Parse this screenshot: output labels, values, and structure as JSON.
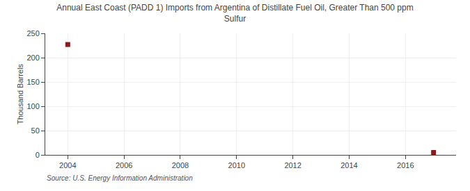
{
  "chart_data": {
    "type": "scatter",
    "title": "Annual East Coast (PADD 1) Imports from Argentina of Distillate Fuel Oil, Greater Than 500 ppm\nSulfur",
    "ylabel": "Thousand Barrels",
    "annotations": [
      "Source: U.S. Energy Information Administration"
    ],
    "x": [
      2004,
      2017
    ],
    "values": [
      227,
      5
    ],
    "color": "#8b1a1a",
    "marker": "square",
    "xlim": [
      2003.2,
      2017.8
    ],
    "xticks": [
      2004,
      2006,
      2008,
      2010,
      2012,
      2014,
      2016
    ],
    "ylim": [
      0,
      250
    ],
    "yticks": [
      0,
      50,
      100,
      150,
      200,
      250
    ],
    "grid": true
  }
}
